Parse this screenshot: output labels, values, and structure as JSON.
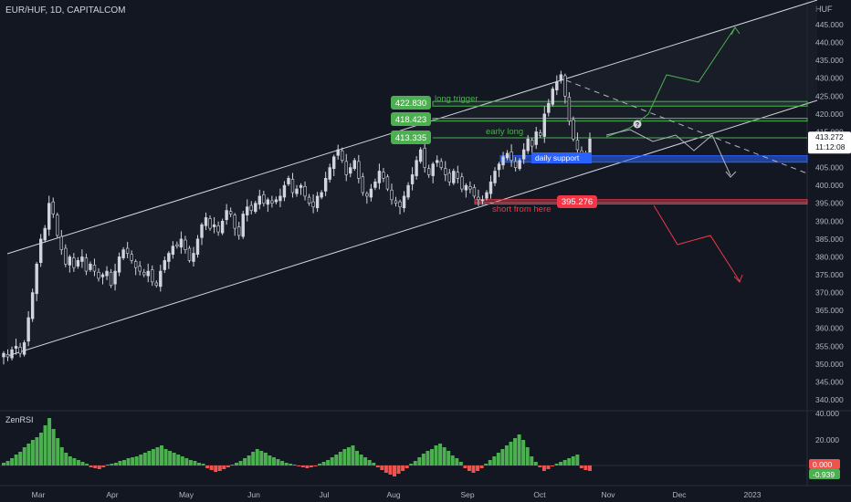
{
  "header": {
    "symbol": "EUR/HUF, 1D, CAPITALCOM",
    "currency": "HUF"
  },
  "indicator": {
    "name": "ZenRSI",
    "ticks": [
      "40.000",
      "20.000"
    ],
    "value_top": "0.000",
    "value_bottom": "-0.939"
  },
  "price_axis": {
    "ticks": [
      "445.000",
      "440.000",
      "435.000",
      "430.000",
      "425.000",
      "420.000",
      "415.000",
      "410.000",
      "405.000",
      "400.000",
      "395.000",
      "390.000",
      "385.000",
      "380.000",
      "375.000",
      "370.000",
      "365.000",
      "360.000",
      "355.000",
      "350.000",
      "345.000",
      "340.000"
    ],
    "current_price": "413.272",
    "countdown": "11:12:08"
  },
  "time_axis": {
    "labels": [
      "Mar",
      "Apr",
      "May",
      "Jun",
      "Jul",
      "Aug",
      "Sep",
      "Oct",
      "Nov",
      "Dec",
      "2023"
    ]
  },
  "annotations": {
    "long_trigger": {
      "price": "422.830",
      "label": "long trigger"
    },
    "level_418": {
      "price": "418.423"
    },
    "early_long": {
      "price": "413.335",
      "label": "early long"
    },
    "daily_support": {
      "label": "daily support"
    },
    "short": {
      "price": "395.276",
      "label": "short from here"
    },
    "question": "?"
  },
  "colors": {
    "background": "#131722",
    "up": "#26a69a",
    "down": "#ef5350",
    "green_box": "#4caf50",
    "red": "#f23645",
    "blue_zone": "#2962ff",
    "text": "#d1d4dc"
  },
  "chart_data": {
    "type": "candlestick",
    "instrument": "EUR/HUF",
    "interval": "1D",
    "price_range": [
      340,
      445
    ],
    "long_trigger": 422.83,
    "level_2": 418.423,
    "early_long": 413.335,
    "short_level": 395.276,
    "last_price": 413.272,
    "daily_support_zone": [
      406.5,
      408.3
    ],
    "closes_approx": [
      353,
      352,
      354,
      355,
      353,
      356,
      363,
      370,
      378,
      385,
      388,
      395,
      392,
      386,
      382,
      378,
      380,
      377,
      379,
      380,
      376,
      378,
      376,
      374,
      375,
      376,
      372,
      376,
      380,
      382,
      381,
      379,
      377,
      376,
      375,
      376,
      373,
      372,
      376,
      379,
      381,
      383,
      383,
      385,
      382,
      379,
      381,
      385,
      389,
      391,
      388,
      389,
      387,
      390,
      393,
      392,
      388,
      386,
      392,
      394,
      393,
      395,
      397,
      395,
      396,
      395,
      396,
      397,
      400,
      402,
      398,
      399,
      400,
      397,
      395,
      394,
      397,
      398,
      402,
      405,
      408,
      410,
      407,
      403,
      405,
      407,
      402,
      398,
      397,
      399,
      401,
      404,
      402,
      399,
      396,
      395,
      394,
      397,
      400,
      403,
      407,
      410,
      405,
      403,
      406,
      407,
      405,
      403,
      401,
      404,
      402,
      399,
      400,
      399,
      397,
      396,
      396,
      398,
      401,
      404,
      406,
      408,
      409,
      407,
      405,
      407,
      410,
      413,
      411,
      415,
      414,
      420,
      423,
      427,
      429,
      431,
      425,
      418,
      413,
      410,
      408,
      409,
      413
    ]
  }
}
